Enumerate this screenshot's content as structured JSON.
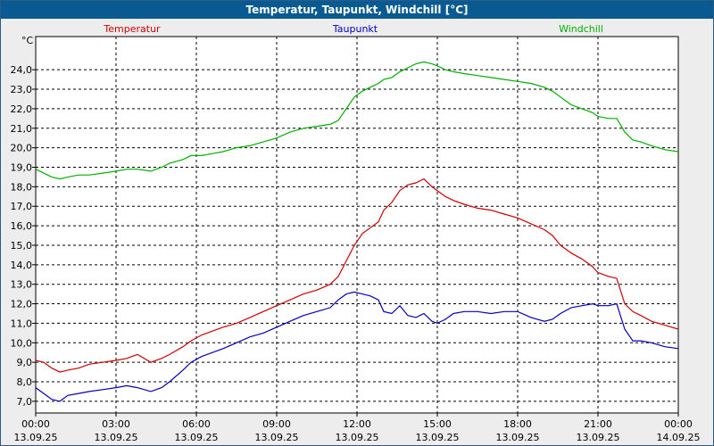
{
  "title": "Temperatur, Taupunkt, Windchill [°C]",
  "chart_data": {
    "type": "line",
    "yunit": "°C",
    "ylim": [
      6.4,
      25.7
    ],
    "y_ticks": [
      "7,0",
      "8,0",
      "9,0",
      "10,0",
      "11,0",
      "12,0",
      "13,0",
      "14,0",
      "15,0",
      "16,0",
      "17,0",
      "18,0",
      "19,0",
      "20,0",
      "21,0",
      "22,0",
      "23,0",
      "24,0"
    ],
    "x_ticks": [
      {
        "time": "00:00",
        "date": "13.09.25"
      },
      {
        "time": "03:00",
        "date": "13.09.25"
      },
      {
        "time": "06:00",
        "date": "13.09.25"
      },
      {
        "time": "09:00",
        "date": "13.09.25"
      },
      {
        "time": "12:00",
        "date": "13.09.25"
      },
      {
        "time": "15:00",
        "date": "13.09.25"
      },
      {
        "time": "18:00",
        "date": "13.09.25"
      },
      {
        "time": "21:00",
        "date": "13.09.25"
      },
      {
        "time": "00:00",
        "date": "14.09.25"
      }
    ],
    "grid": true,
    "series": [
      {
        "name": "Temperatur",
        "color": "#d00000",
        "x": [
          0,
          0.3,
          0.6,
          0.9,
          1.2,
          1.6,
          2,
          2.5,
          3,
          3.4,
          3.8,
          4.3,
          4.7,
          5,
          5.5,
          5.8,
          6.2,
          6.6,
          7,
          7.5,
          8,
          8.5,
          9,
          9.5,
          10,
          10.5,
          11,
          11.3,
          11.6,
          11.9,
          12.2,
          12.5,
          12.8,
          13,
          13.3,
          13.6,
          13.9,
          14.2,
          14.5,
          14.8,
          15,
          15.3,
          15.6,
          16,
          16.5,
          17,
          17.5,
          18,
          18.5,
          19,
          19.3,
          19.6,
          20,
          20.4,
          20.8,
          21,
          21.4,
          21.7,
          22,
          22.3,
          22.6,
          23,
          23.5,
          24
        ],
        "y": [
          9.1,
          9.0,
          8.7,
          8.5,
          8.6,
          8.7,
          8.9,
          9.0,
          9.1,
          9.2,
          9.4,
          9.0,
          9.2,
          9.4,
          9.8,
          10.1,
          10.4,
          10.6,
          10.8,
          11.0,
          11.3,
          11.6,
          11.9,
          12.2,
          12.5,
          12.7,
          13.0,
          13.4,
          14.2,
          15.0,
          15.6,
          15.9,
          16.2,
          16.8,
          17.2,
          17.8,
          18.1,
          18.2,
          18.4,
          18.0,
          17.8,
          17.5,
          17.3,
          17.1,
          16.9,
          16.8,
          16.6,
          16.4,
          16.1,
          15.8,
          15.5,
          15.0,
          14.6,
          14.3,
          13.9,
          13.6,
          13.4,
          13.3,
          12.0,
          11.6,
          11.4,
          11.1,
          10.9,
          10.7
        ]
      },
      {
        "name": "Taupunkt",
        "color": "#0000c0",
        "x": [
          0,
          0.3,
          0.6,
          0.9,
          1.2,
          1.6,
          2,
          2.5,
          3,
          3.4,
          3.8,
          4.3,
          4.7,
          5,
          5.5,
          5.8,
          6.2,
          6.6,
          7,
          7.5,
          8,
          8.5,
          9,
          9.5,
          10,
          10.5,
          11,
          11.3,
          11.6,
          11.9,
          12.2,
          12.5,
          12.8,
          13,
          13.3,
          13.6,
          13.9,
          14.2,
          14.5,
          14.8,
          15,
          15.3,
          15.6,
          16,
          16.5,
          17,
          17.5,
          18,
          18.5,
          19,
          19.3,
          19.6,
          20,
          20.4,
          20.8,
          21,
          21.4,
          21.7,
          22,
          22.3,
          22.6,
          23,
          23.5,
          24
        ],
        "y": [
          7.7,
          7.4,
          7.1,
          7.0,
          7.3,
          7.4,
          7.5,
          7.6,
          7.7,
          7.8,
          7.7,
          7.5,
          7.7,
          8.0,
          8.6,
          9.0,
          9.3,
          9.5,
          9.7,
          10.0,
          10.3,
          10.5,
          10.8,
          11.1,
          11.4,
          11.6,
          11.8,
          12.2,
          12.5,
          12.6,
          12.5,
          12.4,
          12.2,
          11.6,
          11.5,
          11.9,
          11.4,
          11.3,
          11.5,
          11.1,
          11.0,
          11.2,
          11.5,
          11.6,
          11.6,
          11.5,
          11.6,
          11.6,
          11.3,
          11.1,
          11.2,
          11.5,
          11.8,
          11.9,
          12.0,
          11.9,
          11.9,
          12.0,
          10.7,
          10.1,
          10.1,
          10.0,
          9.8,
          9.7
        ]
      },
      {
        "name": "Windchill",
        "color": "#00b000",
        "x": [
          0,
          0.3,
          0.6,
          0.9,
          1.2,
          1.6,
          2,
          2.5,
          3,
          3.4,
          3.8,
          4.3,
          4.7,
          5,
          5.5,
          5.8,
          6.2,
          6.6,
          7,
          7.5,
          8,
          8.5,
          9,
          9.5,
          10,
          10.5,
          11,
          11.3,
          11.6,
          11.9,
          12.2,
          12.5,
          12.8,
          13,
          13.3,
          13.6,
          13.9,
          14.2,
          14.5,
          14.8,
          15,
          15.3,
          15.6,
          16,
          16.5,
          17,
          17.5,
          18,
          18.5,
          19,
          19.3,
          19.6,
          20,
          20.4,
          20.8,
          21,
          21.4,
          21.7,
          22,
          22.3,
          22.6,
          23,
          23.5,
          24
        ],
        "y": [
          18.9,
          18.7,
          18.5,
          18.4,
          18.5,
          18.6,
          18.6,
          18.7,
          18.8,
          18.9,
          18.9,
          18.8,
          19.0,
          19.2,
          19.4,
          19.6,
          19.6,
          19.7,
          19.8,
          20.0,
          20.1,
          20.3,
          20.5,
          20.8,
          21.0,
          21.1,
          21.2,
          21.4,
          22.0,
          22.6,
          22.9,
          23.1,
          23.3,
          23.5,
          23.6,
          23.9,
          24.1,
          24.3,
          24.4,
          24.3,
          24.2,
          24.0,
          23.9,
          23.8,
          23.7,
          23.6,
          23.5,
          23.4,
          23.3,
          23.1,
          22.9,
          22.6,
          22.2,
          22.0,
          21.8,
          21.6,
          21.5,
          21.5,
          20.8,
          20.4,
          20.3,
          20.1,
          19.9,
          19.8
        ]
      }
    ]
  }
}
